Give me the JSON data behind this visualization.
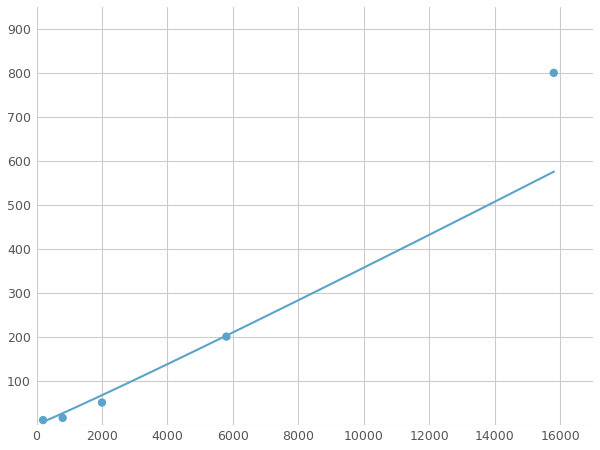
{
  "x": [
    200,
    800,
    2000,
    5800,
    15800
  ],
  "y": [
    10,
    15,
    50,
    200,
    800
  ],
  "line_color": "#5ba3c9",
  "marker_color": "#5ba3c9",
  "marker_size": 6,
  "line_width": 1.5,
  "xlim": [
    0,
    17000
  ],
  "ylim": [
    0,
    950
  ],
  "xticks": [
    0,
    2000,
    4000,
    6000,
    8000,
    10000,
    12000,
    14000,
    16000
  ],
  "yticks": [
    0,
    100,
    200,
    300,
    400,
    500,
    600,
    700,
    800,
    900
  ],
  "grid_color": "#cccccc",
  "bg_color": "#ffffff",
  "fig_bg_color": "#ffffff",
  "tick_label_color": "#555555",
  "tick_fontsize": 9
}
